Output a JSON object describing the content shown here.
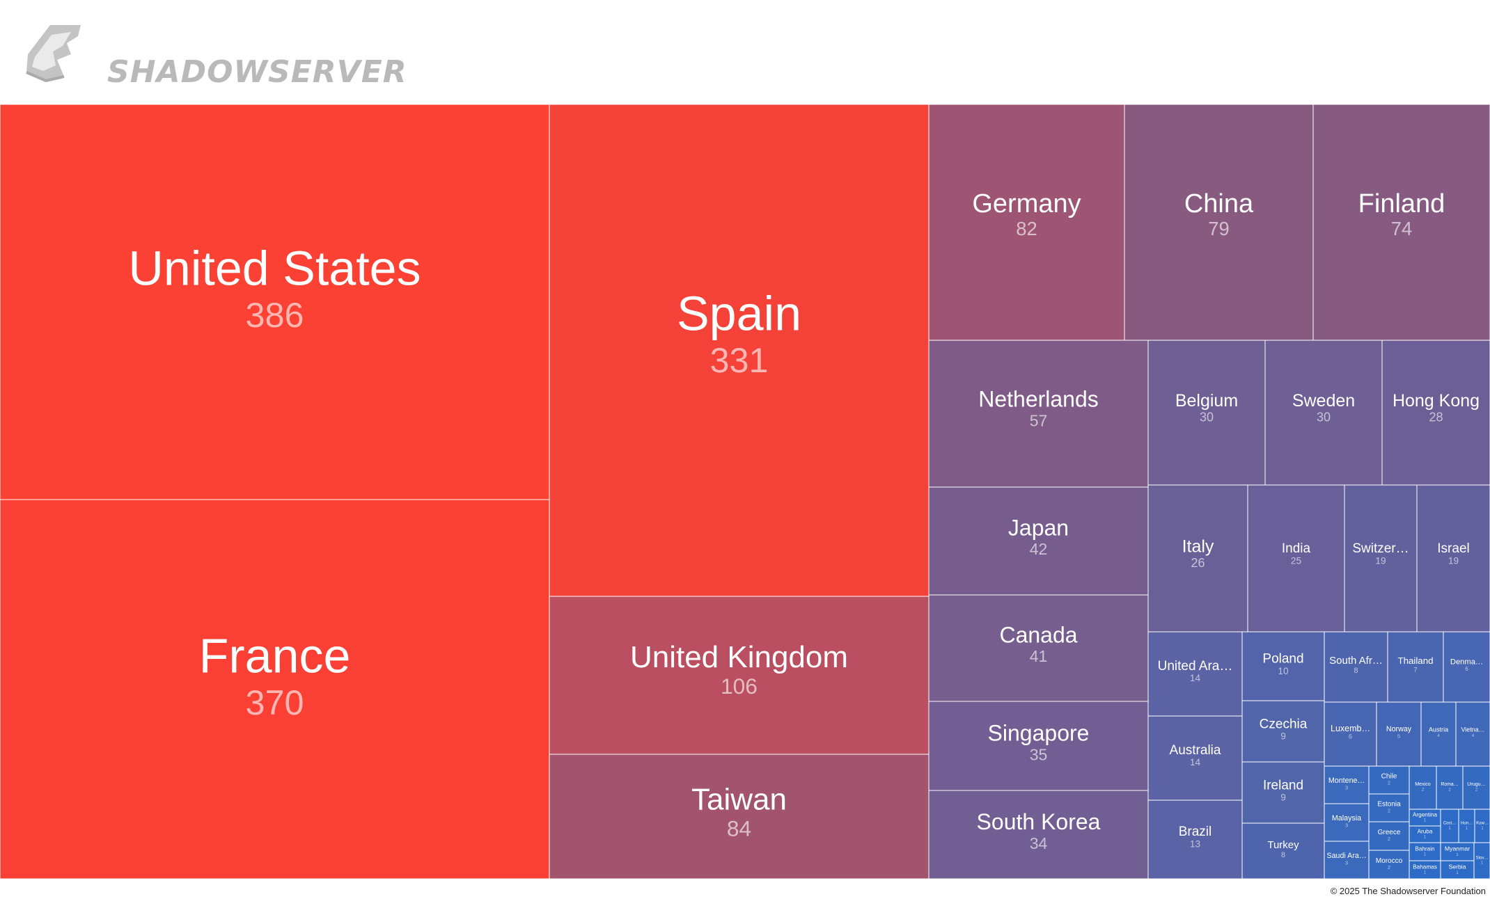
{
  "header": {
    "logo_text": "SHADOWSERVER",
    "logo_icon": "shadowserver-fox-mark-icon"
  },
  "footer": {
    "copyright": "© 2025 The Shadowserver Foundation"
  },
  "chart_data": {
    "type": "treemap",
    "value_axis": "none",
    "color_scale": {
      "high": "#fb4034",
      "mid": "#895a80",
      "low": "#2e6bc6"
    },
    "items": [
      {
        "name": "United States",
        "label": "United States",
        "value": 386
      },
      {
        "name": "France",
        "label": "France",
        "value": 370
      },
      {
        "name": "Spain",
        "label": "Spain",
        "value": 331
      },
      {
        "name": "United Kingdom",
        "label": "United Kingdom",
        "value": 106
      },
      {
        "name": "Taiwan",
        "label": "Taiwan",
        "value": 84
      },
      {
        "name": "Germany",
        "label": "Germany",
        "value": 82
      },
      {
        "name": "China",
        "label": "China",
        "value": 79
      },
      {
        "name": "Finland",
        "label": "Finland",
        "value": 74
      },
      {
        "name": "Netherlands",
        "label": "Netherlands",
        "value": 57
      },
      {
        "name": "Japan",
        "label": "Japan",
        "value": 42
      },
      {
        "name": "Canada",
        "label": "Canada",
        "value": 41
      },
      {
        "name": "Singapore",
        "label": "Singapore",
        "value": 35
      },
      {
        "name": "South Korea",
        "label": "South Korea",
        "value": 34
      },
      {
        "name": "Belgium",
        "label": "Belgium",
        "value": 30
      },
      {
        "name": "Sweden",
        "label": "Sweden",
        "value": 30
      },
      {
        "name": "Hong Kong",
        "label": "Hong Kong",
        "value": 28
      },
      {
        "name": "Italy",
        "label": "Italy",
        "value": 26
      },
      {
        "name": "India",
        "label": "India",
        "value": 25
      },
      {
        "name": "Switzerland",
        "label": "Switzer…",
        "value": 19
      },
      {
        "name": "Israel",
        "label": "Israel",
        "value": 19
      },
      {
        "name": "United Arab Emirates",
        "label": "United Ara…",
        "value": 14
      },
      {
        "name": "Australia",
        "label": "Australia",
        "value": 14
      },
      {
        "name": "Brazil",
        "label": "Brazil",
        "value": 13
      },
      {
        "name": "Poland",
        "label": "Poland",
        "value": 10
      },
      {
        "name": "Czechia",
        "label": "Czechia",
        "value": 9
      },
      {
        "name": "Ireland",
        "label": "Ireland",
        "value": 9
      },
      {
        "name": "Turkey",
        "label": "Turkey",
        "value": 8
      },
      {
        "name": "South Africa",
        "label": "South Afr…",
        "value": 8
      },
      {
        "name": "Thailand",
        "label": "Thailand",
        "value": 7
      },
      {
        "name": "Denmark",
        "label": "Denma…",
        "value": 6
      },
      {
        "name": "Luxembourg",
        "label": "Luxemb…",
        "value": 6
      },
      {
        "name": "Norway",
        "label": "Norway",
        "value": 5
      },
      {
        "name": "Austria",
        "label": "Austria",
        "value": 4
      },
      {
        "name": "Vietnam",
        "label": "Vietna…",
        "value": 4
      },
      {
        "name": "Montenegro",
        "label": "Montene…",
        "value": 3
      },
      {
        "name": "Chile",
        "label": "Chile",
        "value": 2
      },
      {
        "name": "Mexico",
        "label": "Mexico",
        "value": 2
      },
      {
        "name": "Romania",
        "label": "Roma…",
        "value": 2
      },
      {
        "name": "Uruguay",
        "label": "Urugu…",
        "value": 2
      },
      {
        "name": "Malaysia",
        "label": "Malaysia",
        "value": 3
      },
      {
        "name": "Estonia",
        "label": "Estonia",
        "value": 2
      },
      {
        "name": "Greece",
        "label": "Greece",
        "value": 2
      },
      {
        "name": "Saudi Arabia",
        "label": "Saudi Ara…",
        "value": 3
      },
      {
        "name": "Morocco",
        "label": "Morocco",
        "value": 2
      },
      {
        "name": "Argentina",
        "label": "Argentina",
        "value": 1
      },
      {
        "name": "Aruba",
        "label": "Aruba",
        "value": 1
      },
      {
        "name": "Costa Rica",
        "label": "Cost…",
        "value": 1
      },
      {
        "name": "Hungary",
        "label": "Hun…",
        "value": 1
      },
      {
        "name": "Kuwait",
        "label": "Kuw…",
        "value": 1
      },
      {
        "name": "Bahrain",
        "label": "Bahrain",
        "value": 1
      },
      {
        "name": "Myanmar",
        "label": "Myanmar",
        "value": 1
      },
      {
        "name": "Bahamas",
        "label": "Bahamas",
        "value": 1
      },
      {
        "name": "Serbia",
        "label": "Serbia",
        "value": 1
      },
      {
        "name": "Slovakia",
        "label": "Slov…",
        "value": 1
      }
    ]
  }
}
